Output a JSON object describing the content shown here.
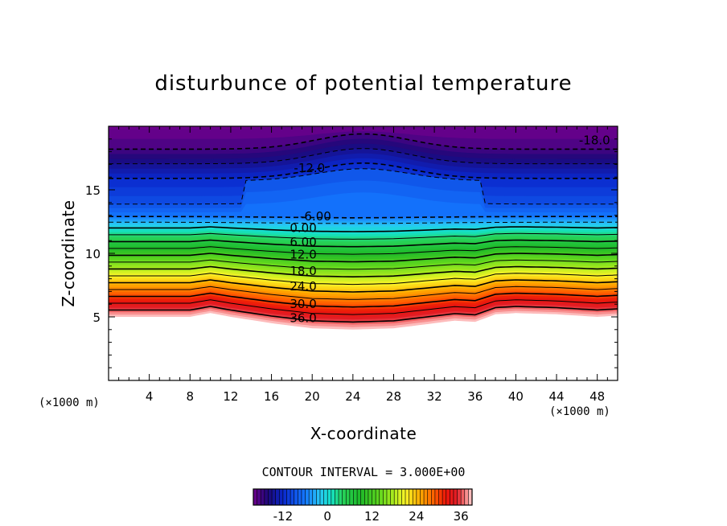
{
  "chart_data": {
    "type": "contour",
    "title": "disturbunce of potential temperature",
    "xlabel": "X-coordinate",
    "ylabel": "Z-coordinate",
    "x_unit": "(×1000 m)",
    "y_unit": "(×1000 m)",
    "xlim": [
      0,
      50
    ],
    "ylim": [
      0,
      20
    ],
    "x_ticks": [
      4,
      8,
      12,
      16,
      20,
      24,
      28,
      32,
      36,
      40,
      44,
      48
    ],
    "y_ticks": [
      5,
      10,
      15
    ],
    "contour_interval_text": "CONTOUR INTERVAL = 3.000E+00",
    "value_range": [
      -20,
      39
    ],
    "terrain": {
      "x": [
        0,
        4,
        8,
        10,
        12,
        16,
        20,
        24,
        28,
        32,
        34,
        36,
        38,
        40,
        44,
        48,
        50
      ],
      "z": [
        5.0,
        5.0,
        5.0,
        5.3,
        5.0,
        4.5,
        4.1,
        4.0,
        4.1,
        4.5,
        4.7,
        4.6,
        5.2,
        5.3,
        5.2,
        5.0,
        5.1
      ]
    },
    "contour_labels": [
      {
        "text": "-18.0",
        "x": 46.2,
        "z": 18.9
      },
      {
        "text": "-12.0",
        "x": 18.2,
        "z": 16.7
      },
      {
        "text": "-6.00",
        "x": 18.8,
        "z": 12.9
      },
      {
        "text": "0.00",
        "x": 17.8,
        "z": 12.0
      },
      {
        "text": "6.00",
        "x": 17.8,
        "z": 10.9
      },
      {
        "text": "12.0",
        "x": 17.8,
        "z": 9.9
      },
      {
        "text": "18.0",
        "x": 17.8,
        "z": 8.6
      },
      {
        "text": "24.0",
        "x": 17.8,
        "z": 7.4
      },
      {
        "text": "30.0",
        "x": 17.8,
        "z": 6.0
      },
      {
        "text": "36.0",
        "x": 17.8,
        "z": 4.9
      }
    ],
    "colorbar": {
      "ticks": [
        -12,
        0,
        12,
        24,
        36
      ],
      "range": [
        -20,
        39
      ]
    }
  }
}
